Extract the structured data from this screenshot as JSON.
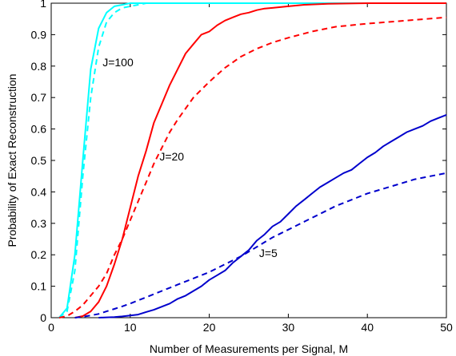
{
  "chart_data": {
    "type": "line",
    "title": "",
    "xlabel": "Number of Measurements per Signal, M",
    "ylabel": "Probability of Exact Reconstruction",
    "xlim": [
      0,
      50
    ],
    "ylim": [
      0,
      1
    ],
    "xticks": [
      0,
      10,
      20,
      30,
      40,
      50
    ],
    "yticks": [
      0,
      0.1,
      0.2,
      0.3,
      0.4,
      0.5,
      0.6,
      0.7,
      0.8,
      0.9,
      1
    ],
    "grid": false,
    "legend": "none",
    "series": [
      {
        "color": "#00ffff",
        "style": "solid",
        "x": [
          1,
          2,
          3,
          4,
          5,
          6,
          7,
          8,
          9,
          10,
          12,
          15,
          20,
          30,
          40,
          50
        ],
        "y": [
          0.0,
          0.03,
          0.2,
          0.5,
          0.79,
          0.92,
          0.97,
          0.99,
          0.995,
          1.0,
          1.0,
          1.0,
          1.0,
          1.0,
          1.0,
          1.0
        ]
      },
      {
        "color": "#00ffff",
        "style": "dashed",
        "x": [
          1,
          2,
          3,
          4,
          5,
          6,
          7,
          8,
          9,
          10,
          11,
          12,
          15,
          20,
          30,
          40,
          50
        ],
        "y": [
          0.0,
          0.02,
          0.15,
          0.45,
          0.7,
          0.86,
          0.94,
          0.97,
          0.985,
          0.99,
          0.995,
          1.0,
          1.0,
          1.0,
          1.0,
          1.0,
          1.0
        ]
      },
      {
        "color": "#ff0000",
        "style": "solid",
        "x": [
          3,
          4,
          5,
          6,
          7,
          8,
          9,
          10,
          11,
          12,
          13,
          14,
          15,
          16,
          17,
          18,
          19,
          20,
          21,
          22,
          23,
          24,
          25,
          26,
          27,
          28,
          30,
          32,
          35,
          40,
          45,
          50
        ],
        "y": [
          0.0,
          0.005,
          0.02,
          0.05,
          0.1,
          0.17,
          0.25,
          0.35,
          0.45,
          0.53,
          0.62,
          0.68,
          0.74,
          0.79,
          0.84,
          0.87,
          0.9,
          0.91,
          0.93,
          0.945,
          0.955,
          0.965,
          0.97,
          0.978,
          0.983,
          0.985,
          0.99,
          0.995,
          0.998,
          1.0,
          1.0,
          1.0
        ]
      },
      {
        "color": "#ff0000",
        "style": "dashed",
        "x": [
          1,
          2,
          3,
          4,
          5,
          6,
          7,
          8,
          9,
          10,
          11,
          12,
          13,
          14,
          15,
          16,
          18,
          20,
          22,
          24,
          26,
          28,
          30,
          33,
          36,
          40,
          45,
          50
        ],
        "y": [
          0.0,
          0.005,
          0.02,
          0.04,
          0.07,
          0.1,
          0.14,
          0.2,
          0.25,
          0.31,
          0.37,
          0.43,
          0.49,
          0.54,
          0.59,
          0.63,
          0.7,
          0.75,
          0.795,
          0.83,
          0.855,
          0.875,
          0.89,
          0.91,
          0.925,
          0.935,
          0.945,
          0.955
        ]
      },
      {
        "color": "#0000cc",
        "style": "solid",
        "x": [
          6,
          7,
          8,
          9,
          10,
          11,
          12,
          13,
          14,
          15,
          16,
          17,
          18,
          19,
          20,
          21,
          22,
          23,
          24,
          25,
          26,
          27,
          28,
          29,
          30,
          31,
          32,
          33,
          34,
          35,
          36,
          37,
          38,
          39,
          40,
          41,
          42,
          43,
          44,
          45,
          46,
          47,
          48,
          49,
          50
        ],
        "y": [
          0.0,
          0.001,
          0.002,
          0.004,
          0.007,
          0.01,
          0.018,
          0.025,
          0.035,
          0.045,
          0.06,
          0.07,
          0.085,
          0.1,
          0.12,
          0.135,
          0.15,
          0.175,
          0.195,
          0.215,
          0.245,
          0.265,
          0.29,
          0.305,
          0.33,
          0.355,
          0.375,
          0.395,
          0.415,
          0.43,
          0.445,
          0.46,
          0.47,
          0.49,
          0.51,
          0.525,
          0.545,
          0.56,
          0.575,
          0.59,
          0.6,
          0.61,
          0.625,
          0.635,
          0.645
        ]
      },
      {
        "color": "#0000cc",
        "style": "dashed",
        "x": [
          3,
          4,
          5,
          6,
          7,
          8,
          9,
          10,
          12,
          14,
          16,
          18,
          20,
          22,
          24,
          26,
          28,
          30,
          32,
          34,
          36,
          38,
          40,
          42,
          44,
          46,
          48,
          50
        ],
        "y": [
          0.0,
          0.003,
          0.007,
          0.012,
          0.02,
          0.028,
          0.036,
          0.045,
          0.065,
          0.085,
          0.105,
          0.125,
          0.145,
          0.17,
          0.195,
          0.225,
          0.255,
          0.28,
          0.305,
          0.33,
          0.355,
          0.375,
          0.395,
          0.41,
          0.425,
          0.44,
          0.45,
          0.46
        ]
      }
    ],
    "annotations": [
      {
        "text": "J=100",
        "x": 6.5,
        "y": 0.8
      },
      {
        "text": "J=20",
        "x": 13.7,
        "y": 0.5
      },
      {
        "text": "J=5",
        "x": 26.3,
        "y": 0.193
      }
    ]
  }
}
